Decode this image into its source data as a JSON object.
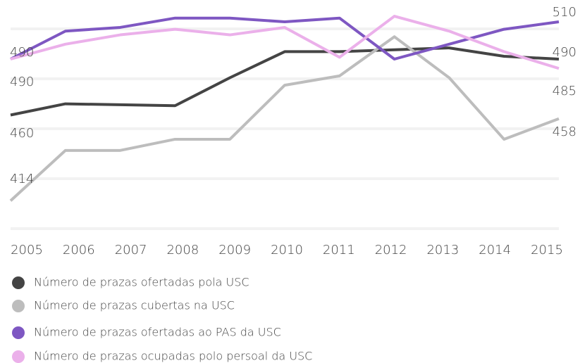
{
  "chart_data": {
    "type": "line",
    "categories": [
      "2005",
      "2006",
      "2007",
      "2008",
      "2009",
      "2010",
      "2011",
      "2012",
      "2013",
      "2014",
      "2015"
    ],
    "series": [
      {
        "name": "Número de prazas ofertadas pola USC",
        "color": "#444444",
        "values": [
          460,
          466,
          465.5,
          465,
          480,
          494,
          494,
          495,
          496,
          491.5,
          490
        ]
      },
      {
        "name": "Número de prazas cubertas na USC",
        "color": "#bdbdbd",
        "values": [
          414,
          441,
          441,
          447,
          447,
          476,
          481,
          502,
          480,
          447,
          458
        ]
      },
      {
        "name": "Número de prazas ofertadas ao PAS da USC",
        "color": "#7e57c2",
        "values": [
          490,
          505,
          507,
          512,
          512,
          510,
          512,
          490,
          498,
          506,
          510
        ]
      },
      {
        "name": "Número de prazas ocupadas polo persoal da USC",
        "color": "#ebb0ea",
        "values": [
          490,
          498,
          503,
          506,
          503,
          507,
          491,
          513,
          505,
          494,
          485
        ]
      }
    ],
    "ylim": [
      400,
      520
    ]
  }
}
